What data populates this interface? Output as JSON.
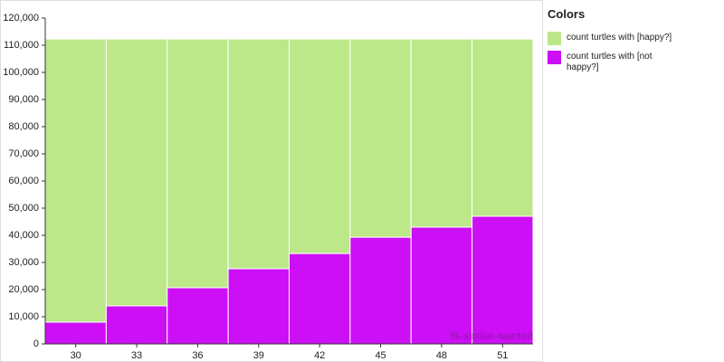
{
  "chart_data": {
    "type": "stacked-bar",
    "legend_title": "Colors",
    "x_label": "%-similar-wanted",
    "categories": [
      "30",
      "33",
      "36",
      "39",
      "42",
      "45",
      "48",
      "51"
    ],
    "series": [
      {
        "name": "count turtles with [happy?]",
        "color": "#bce88a",
        "values": [
          104300,
          98300,
          91600,
          84600,
          79000,
          73000,
          69300,
          65300
        ]
      },
      {
        "name": "count turtles with [not happy?]",
        "color": "#cc0ff5",
        "values": [
          8000,
          14000,
          20700,
          27700,
          33300,
          39300,
          43000,
          47000
        ]
      }
    ],
    "ylim": [
      0,
      120000
    ],
    "yticks": [
      0,
      {
        "value": 10000,
        "label": "10,000"
      },
      {
        "value": 20000,
        "label": "20,000"
      },
      {
        "value": 30000,
        "label": "30,000"
      },
      {
        "value": 40000,
        "label": "40,000"
      },
      {
        "value": 50000,
        "label": "50,000"
      },
      {
        "value": 60000,
        "label": "60,000"
      },
      {
        "value": 70000,
        "label": "70,000"
      },
      {
        "value": 80000,
        "label": "80,000"
      },
      {
        "value": 90000,
        "label": "90,000"
      },
      {
        "value": 100000,
        "label": "100,000"
      },
      {
        "value": 110000,
        "label": "110,000"
      },
      {
        "value": 120000,
        "label": "120,000"
      }
    ]
  }
}
